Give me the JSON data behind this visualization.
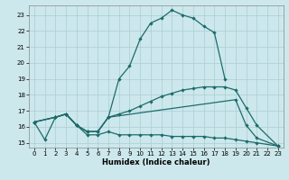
{
  "xlabel": "Humidex (Indice chaleur)",
  "background_color": "#cce8ec",
  "grid_color": "#aacdd4",
  "line_color": "#1e6b6b",
  "xlim": [
    -0.5,
    23.5
  ],
  "ylim": [
    14.7,
    23.6
  ],
  "yticks": [
    15,
    16,
    17,
    18,
    19,
    20,
    21,
    22,
    23
  ],
  "xticks": [
    0,
    1,
    2,
    3,
    4,
    5,
    6,
    7,
    8,
    9,
    10,
    11,
    12,
    13,
    14,
    15,
    16,
    17,
    18,
    19,
    20,
    21,
    22,
    23
  ],
  "series1_x": [
    0,
    1,
    2,
    3,
    4,
    5,
    6,
    7,
    8,
    9,
    10,
    11,
    12,
    13,
    14,
    15,
    16,
    17,
    18
  ],
  "series1_y": [
    16.3,
    15.2,
    16.6,
    16.8,
    16.1,
    15.7,
    15.7,
    16.6,
    19.0,
    19.8,
    21.5,
    22.5,
    22.8,
    23.3,
    23.0,
    22.8,
    22.3,
    21.9,
    19.0
  ],
  "series2_x": [
    0,
    2,
    3,
    4,
    5,
    6,
    7,
    19,
    20,
    21,
    23
  ],
  "series2_y": [
    16.3,
    16.6,
    16.8,
    16.1,
    15.7,
    15.7,
    16.6,
    17.7,
    16.1,
    15.3,
    14.8
  ],
  "series3_x": [
    0,
    2,
    3,
    4,
    5,
    6,
    7,
    8,
    9,
    10,
    11,
    12,
    13,
    14,
    15,
    16,
    17,
    18,
    19,
    20,
    21,
    23
  ],
  "series3_y": [
    16.3,
    16.6,
    16.8,
    16.1,
    15.7,
    15.7,
    16.6,
    16.8,
    17.0,
    17.3,
    17.6,
    17.9,
    18.1,
    18.3,
    18.4,
    18.5,
    18.5,
    18.5,
    18.3,
    17.2,
    16.1,
    14.8
  ],
  "series4_x": [
    0,
    2,
    3,
    4,
    5,
    6,
    7,
    8,
    9,
    10,
    11,
    12,
    13,
    14,
    15,
    16,
    17,
    18,
    19,
    20,
    21,
    23
  ],
  "series4_y": [
    16.3,
    16.6,
    16.8,
    16.1,
    15.5,
    15.5,
    15.7,
    15.5,
    15.5,
    15.5,
    15.5,
    15.5,
    15.4,
    15.4,
    15.4,
    15.4,
    15.3,
    15.3,
    15.2,
    15.1,
    15.0,
    14.8
  ]
}
